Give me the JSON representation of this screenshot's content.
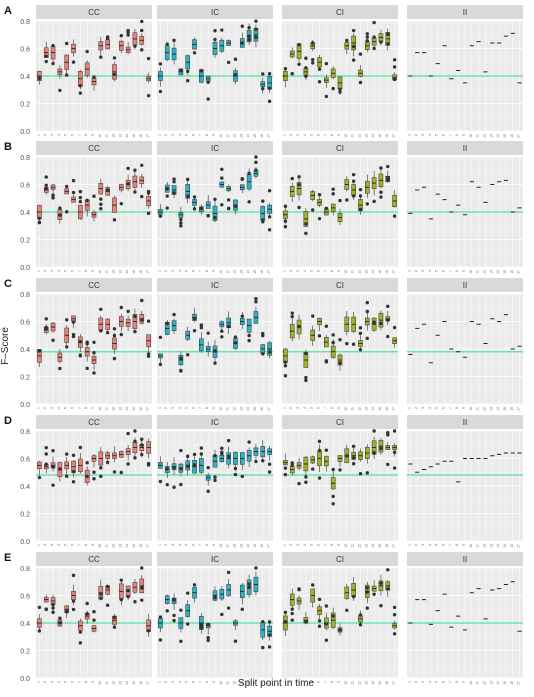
{
  "figure": {
    "x_axis_title": "Split point in time",
    "y_axis_title": "F–Score",
    "panel_tags": [
      "A",
      "B",
      "C",
      "D",
      "E"
    ],
    "facet_labels": [
      "CC",
      "IC",
      "CI",
      "II"
    ],
    "y_ticks": [
      "0.0",
      "0.2",
      "0.4",
      "0.6",
      "0.8"
    ],
    "x_tick_labels": [
      "1",
      "2",
      "3",
      "4",
      "5",
      "6",
      "7",
      "8",
      "9",
      "10",
      "11",
      "12",
      "13",
      "14",
      "15",
      "16",
      "17"
    ]
  },
  "colors": {
    "CC": "#e8837a",
    "IC": "#2db3c5",
    "CI": "#a3b02b",
    "II": "#c77cff",
    "reference_line": "#52e3a5",
    "panel_background": "#ebebeb",
    "strip_background": "#d9d9d9",
    "point": "#333333"
  },
  "chart_data": [
    {
      "type": "box",
      "tag": "A",
      "ylim": [
        0,
        0.8
      ],
      "reference_line": 0.4,
      "facets": [
        {
          "name": "CC",
          "medians": [
            0.4,
            0.57,
            0.57,
            0.43,
            0.5,
            0.6,
            0.38,
            0.45,
            0.36,
            0.62,
            0.63,
            0.43,
            0.62,
            0.59,
            0.67,
            0.66,
            0.38
          ]
        },
        {
          "name": "IC",
          "medians": [
            0.4,
            0.57,
            0.56,
            0.43,
            0.5,
            0.63,
            0.4,
            0.38,
            0.6,
            0.62,
            0.64,
            0.4,
            0.64,
            0.69,
            0.7,
            0.34,
            0.35
          ]
        },
        {
          "name": "CI",
          "medians": [
            0.4,
            0.56,
            0.58,
            0.43,
            0.62,
            0.5,
            0.37,
            0.42,
            0.35,
            0.62,
            0.64,
            0.42,
            0.62,
            0.65,
            0.68,
            0.67,
            0.39
          ]
        },
        {
          "name": "II",
          "medians": [
            0.4,
            0.57,
            0.57,
            0.4,
            0.49,
            0.62,
            0.38,
            0.44,
            0.35,
            0.62,
            0.65,
            0.43,
            0.64,
            0.64,
            0.69,
            0.71,
            0.35
          ]
        }
      ]
    },
    {
      "type": "box",
      "tag": "B",
      "ylim": [
        0,
        0.8
      ],
      "reference_line": 0.4,
      "facets": [
        {
          "name": "CC",
          "medians": [
            0.4,
            0.56,
            0.58,
            0.38,
            0.55,
            0.49,
            0.4,
            0.45,
            0.38,
            0.57,
            0.55,
            0.45,
            0.58,
            0.6,
            0.62,
            0.63,
            0.48
          ]
        },
        {
          "name": "IC",
          "medians": [
            0.4,
            0.57,
            0.56,
            0.38,
            0.55,
            0.47,
            0.42,
            0.45,
            0.39,
            0.6,
            0.57,
            0.45,
            0.58,
            0.62,
            0.68,
            0.39,
            0.42
          ]
        },
        {
          "name": "CI",
          "medians": [
            0.38,
            0.55,
            0.57,
            0.35,
            0.52,
            0.47,
            0.4,
            0.43,
            0.36,
            0.6,
            0.56,
            0.45,
            0.58,
            0.61,
            0.63,
            0.64,
            0.48
          ]
        },
        {
          "name": "II",
          "medians": [
            0.39,
            0.56,
            0.58,
            0.35,
            0.53,
            0.49,
            0.4,
            0.45,
            0.38,
            0.62,
            0.58,
            0.47,
            0.6,
            0.62,
            0.63,
            0.4,
            0.43
          ]
        }
      ]
    },
    {
      "type": "box",
      "tag": "C",
      "ylim": [
        0,
        0.8
      ],
      "reference_line": 0.38,
      "facets": [
        {
          "name": "CC",
          "medians": [
            0.35,
            0.54,
            0.56,
            0.34,
            0.5,
            0.62,
            0.45,
            0.38,
            0.32,
            0.58,
            0.58,
            0.44,
            0.6,
            0.59,
            0.6,
            0.62,
            0.46
          ]
        },
        {
          "name": "IC",
          "medians": [
            0.35,
            0.55,
            0.57,
            0.32,
            0.5,
            0.63,
            0.43,
            0.4,
            0.38,
            0.58,
            0.59,
            0.44,
            0.6,
            0.57,
            0.63,
            0.4,
            0.4
          ]
        },
        {
          "name": "CI",
          "medians": [
            0.35,
            0.53,
            0.56,
            0.32,
            0.5,
            0.6,
            0.45,
            0.38,
            0.32,
            0.58,
            0.58,
            0.44,
            0.6,
            0.58,
            0.61,
            0.62,
            0.46
          ]
        },
        {
          "name": "II",
          "medians": [
            0.36,
            0.55,
            0.58,
            0.3,
            0.5,
            0.6,
            0.4,
            0.38,
            0.34,
            0.6,
            0.58,
            0.44,
            0.62,
            0.6,
            0.65,
            0.4,
            0.42
          ]
        }
      ]
    },
    {
      "type": "box",
      "tag": "D",
      "ylim": [
        0,
        0.8
      ],
      "reference_line": 0.48,
      "facets": [
        {
          "name": "CC",
          "medians": [
            0.55,
            0.54,
            0.55,
            0.52,
            0.55,
            0.54,
            0.55,
            0.47,
            0.6,
            0.6,
            0.62,
            0.62,
            0.63,
            0.65,
            0.68,
            0.68,
            0.68
          ]
        },
        {
          "name": "IC",
          "medians": [
            0.55,
            0.52,
            0.54,
            0.53,
            0.55,
            0.54,
            0.55,
            0.46,
            0.58,
            0.6,
            0.6,
            0.6,
            0.6,
            0.62,
            0.65,
            0.65,
            0.65
          ]
        },
        {
          "name": "CI",
          "medians": [
            0.57,
            0.52,
            0.55,
            0.56,
            0.59,
            0.6,
            0.58,
            0.42,
            0.6,
            0.62,
            0.62,
            0.62,
            0.64,
            0.68,
            0.69,
            0.68,
            0.68
          ]
        },
        {
          "name": "II",
          "medians": [
            0.56,
            0.5,
            0.52,
            0.54,
            0.56,
            0.58,
            0.58,
            0.43,
            0.6,
            0.6,
            0.6,
            0.6,
            0.62,
            0.63,
            0.64,
            0.64,
            0.64
          ]
        }
      ]
    },
    {
      "type": "box",
      "tag": "E",
      "ylim": [
        0,
        0.8
      ],
      "reference_line": 0.4,
      "facets": [
        {
          "name": "CC",
          "medians": [
            0.4,
            0.57,
            0.56,
            0.4,
            0.5,
            0.6,
            0.38,
            0.45,
            0.36,
            0.62,
            0.64,
            0.42,
            0.63,
            0.63,
            0.66,
            0.67,
            0.38
          ]
        },
        {
          "name": "IC",
          "medians": [
            0.4,
            0.57,
            0.56,
            0.4,
            0.49,
            0.62,
            0.4,
            0.38,
            0.6,
            0.61,
            0.64,
            0.4,
            0.63,
            0.66,
            0.68,
            0.35,
            0.34
          ]
        },
        {
          "name": "CI",
          "medians": [
            0.4,
            0.57,
            0.56,
            0.42,
            0.6,
            0.49,
            0.4,
            0.42,
            0.35,
            0.62,
            0.64,
            0.43,
            0.63,
            0.65,
            0.67,
            0.67,
            0.38
          ]
        },
        {
          "name": "II",
          "medians": [
            0.4,
            0.57,
            0.57,
            0.39,
            0.49,
            0.61,
            0.37,
            0.45,
            0.35,
            0.62,
            0.65,
            0.43,
            0.64,
            0.65,
            0.68,
            0.7,
            0.34
          ]
        }
      ]
    }
  ]
}
